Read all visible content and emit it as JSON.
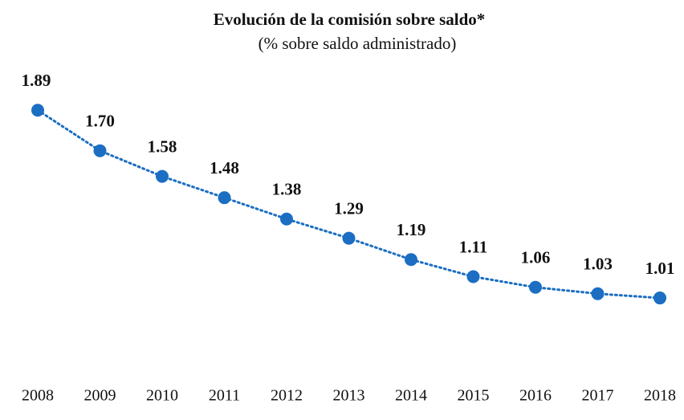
{
  "chart_data": {
    "type": "line",
    "title": "Evolución de la comisión sobre saldo*",
    "subtitle": "(% sobre saldo administrado)",
    "categories": [
      "2008",
      "2009",
      "2010",
      "2011",
      "2012",
      "2013",
      "2014",
      "2015",
      "2016",
      "2017",
      "2018"
    ],
    "values": [
      1.89,
      1.7,
      1.58,
      1.48,
      1.38,
      1.29,
      1.19,
      1.11,
      1.06,
      1.03,
      1.01
    ],
    "value_labels": [
      "1.89",
      "1.70",
      "1.58",
      "1.48",
      "1.38",
      "1.29",
      "1.19",
      "1.11",
      "1.06",
      "1.03",
      "1.01"
    ],
    "color": "#1b6ec2",
    "line_style": "dotted",
    "ylim": [
      0.6,
      2.0
    ]
  }
}
